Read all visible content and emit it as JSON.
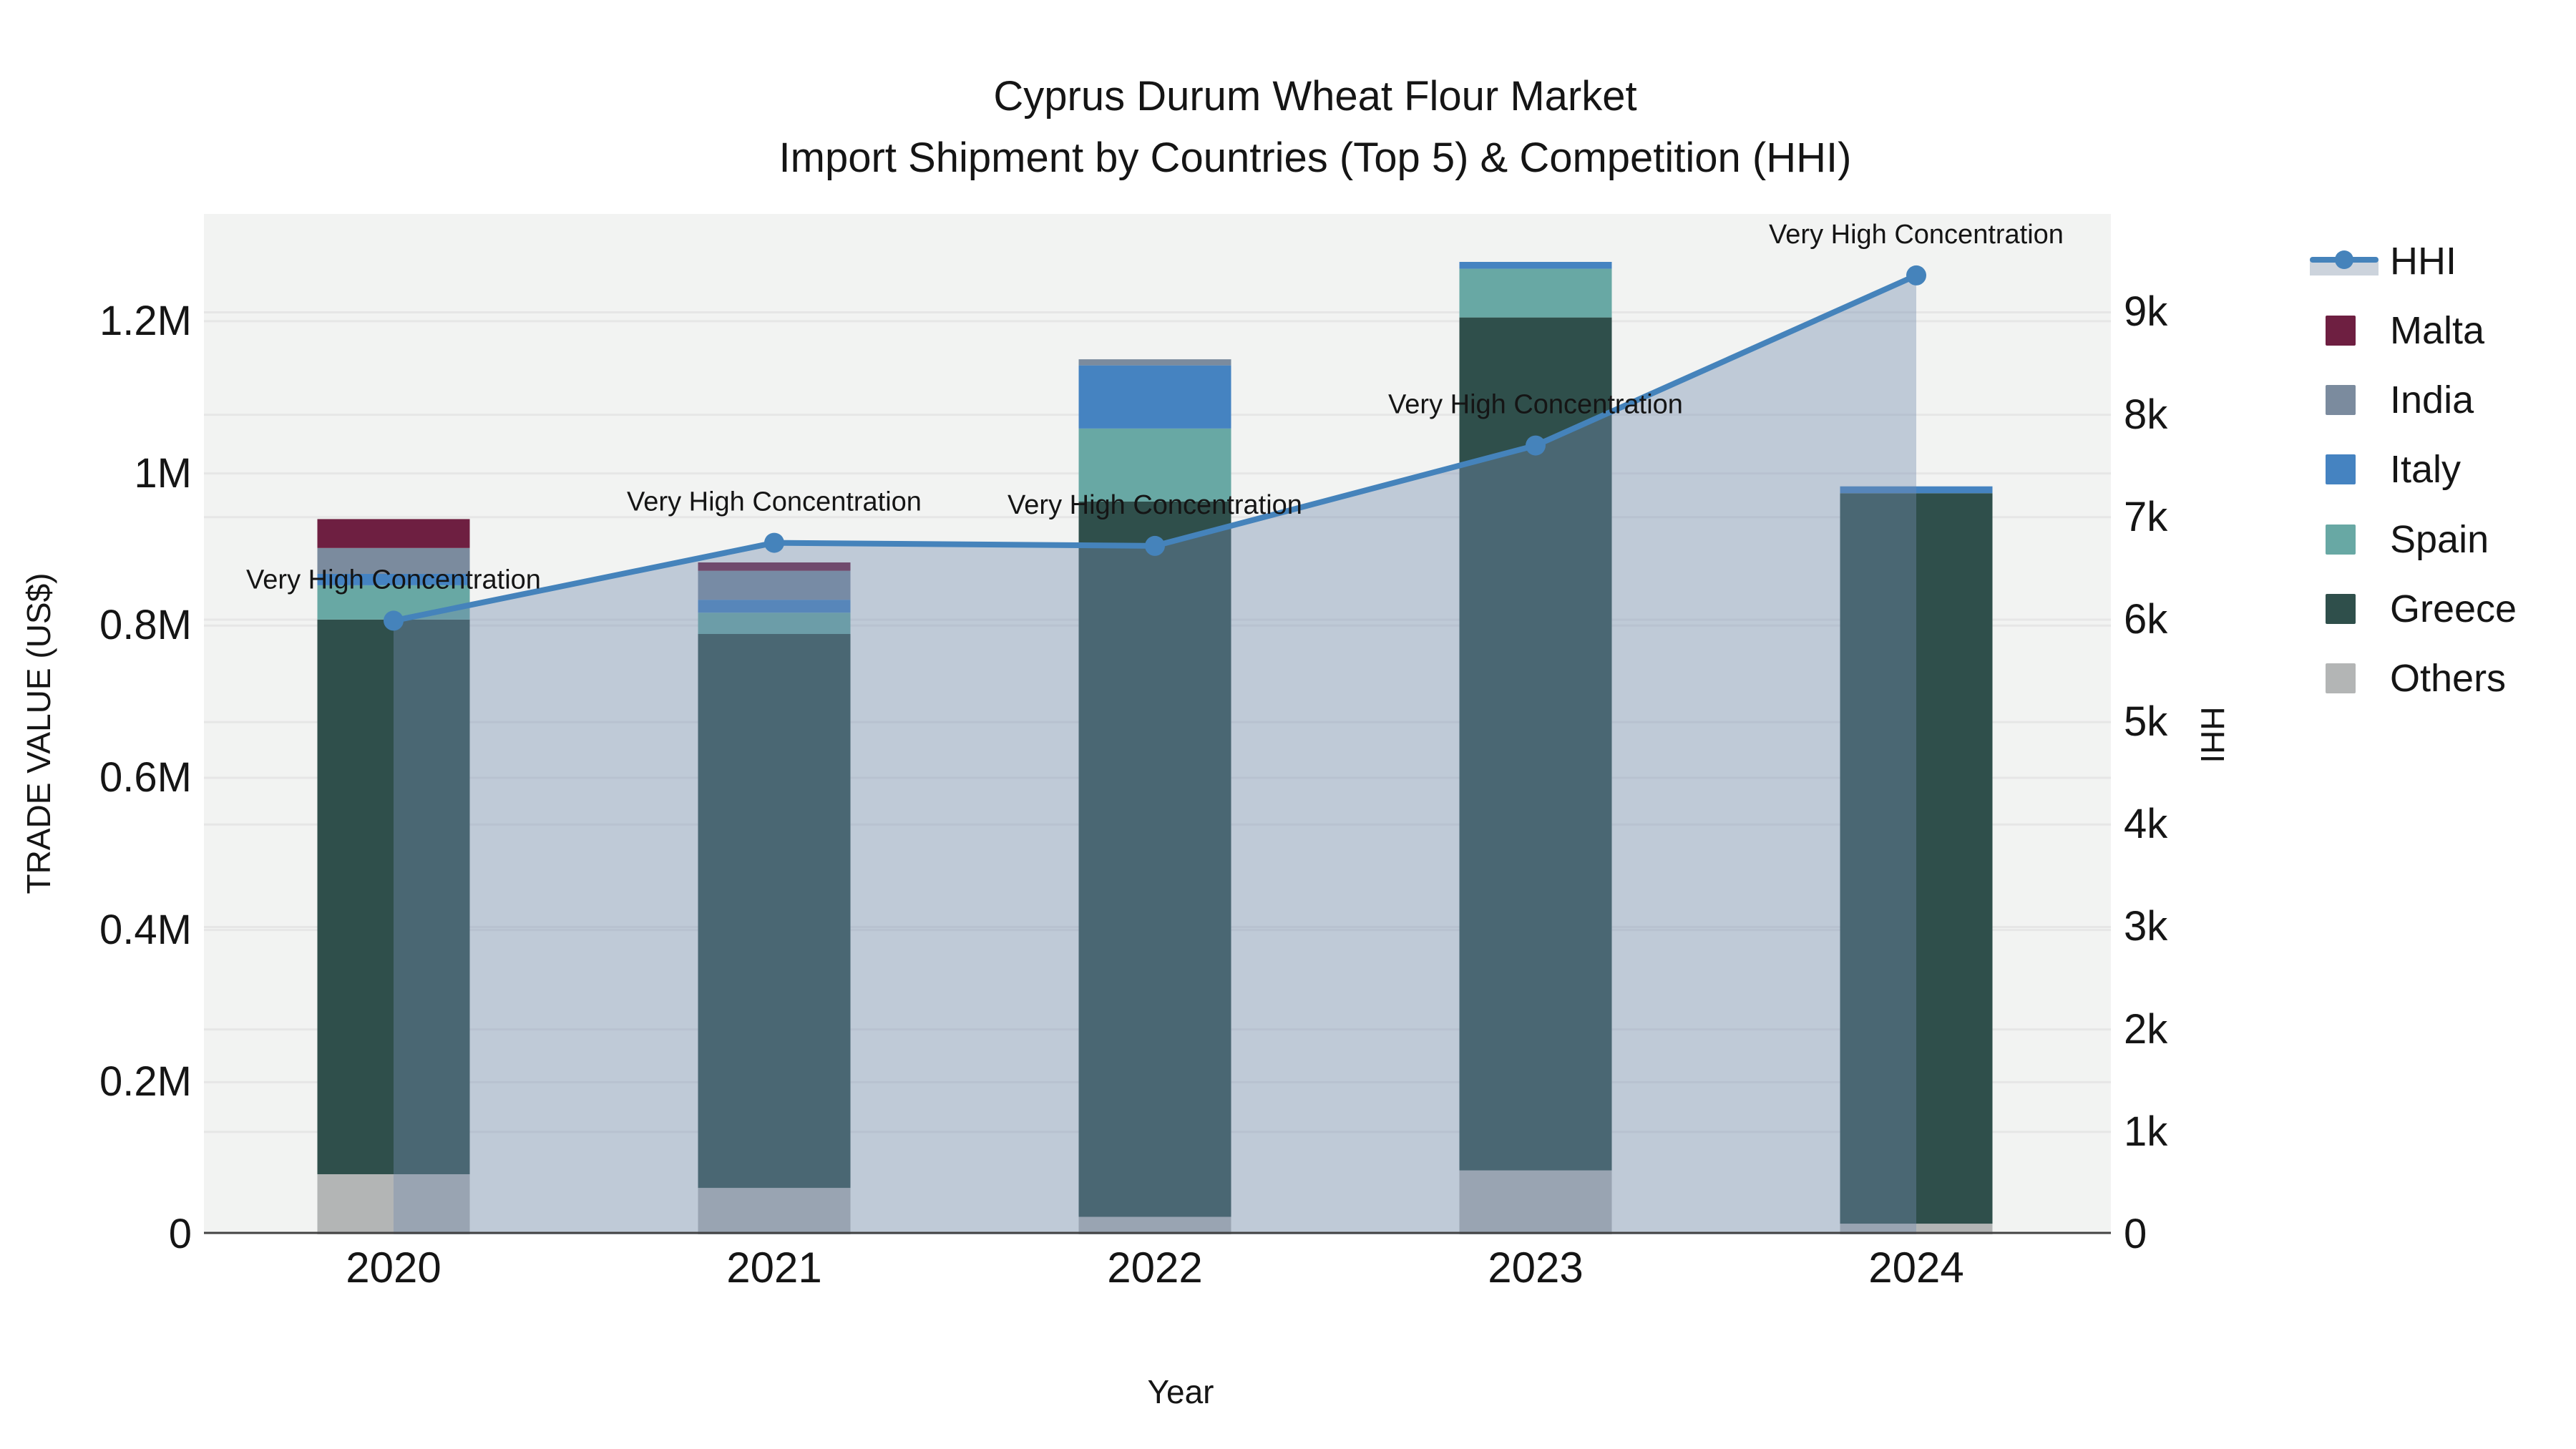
{
  "title": {
    "line1": "Cyprus Durum Wheat Flour Market",
    "line2": "Import Shipment by Countries (Top 5) & Competition (HHI)"
  },
  "axes": {
    "left": {
      "title": "TRADE VALUE (US$)",
      "tick_labels": [
        "0",
        "0.2M",
        "0.4M",
        "0.6M",
        "0.8M",
        "1M",
        "1.2M"
      ],
      "tick_values": [
        0,
        200000,
        400000,
        600000,
        800000,
        1000000,
        1200000
      ],
      "max": 1341000
    },
    "right": {
      "title": "HHI",
      "tick_labels": [
        "0",
        "1k",
        "2k",
        "3k",
        "4k",
        "5k",
        "6k",
        "7k",
        "8k",
        "9k"
      ],
      "tick_values": [
        0,
        1000,
        2000,
        3000,
        4000,
        5000,
        6000,
        7000,
        8000,
        9000
      ],
      "max": 9960
    },
    "x": {
      "title": "Year",
      "tick_labels": [
        "2020",
        "2021",
        "2022",
        "2023",
        "2024"
      ]
    }
  },
  "colors": {
    "plot_bg": "#f2f3f2",
    "grid": "#e6e6e6",
    "axis_line": "#444444",
    "text": "#151515",
    "hhi_line": "#4583bb",
    "hhi_area_fill": "rgba(115,140,175,0.40)"
  },
  "legend": {
    "items": [
      {
        "label": "HHI",
        "type": "line",
        "color": "#4583bb"
      },
      {
        "label": "Malta",
        "type": "bar",
        "color": "#6e1f41"
      },
      {
        "label": "India",
        "type": "bar",
        "color": "#7b8b9e"
      },
      {
        "label": "Italy",
        "type": "bar",
        "color": "#4583c1"
      },
      {
        "label": "Spain",
        "type": "bar",
        "color": "#68a8a4"
      },
      {
        "label": "Greece",
        "type": "bar",
        "color": "#2f4f4b"
      },
      {
        "label": "Others",
        "type": "bar",
        "color": "#b3b5b5"
      }
    ]
  },
  "chart_data": {
    "type": "bar",
    "subtype": "stacked-bars-with-line-overlay",
    "title": "Cyprus Durum Wheat Flour Market — Import Shipment by Countries (Top 5) & Competition (HHI)",
    "xlabel": "Year",
    "ylabel_left": "TRADE VALUE (US$)",
    "ylabel_right": "HHI",
    "ylim_left": [
      0,
      1341000
    ],
    "ylim_right": [
      0,
      9960
    ],
    "grid": true,
    "legend_position": "right",
    "categories": [
      "2020",
      "2021",
      "2022",
      "2023",
      "2024"
    ],
    "series": [
      {
        "name": "Others",
        "type": "bar",
        "color": "#b3b5b5",
        "values": [
          79000,
          61000,
          23000,
          84000,
          14000
        ]
      },
      {
        "name": "Greece",
        "type": "bar",
        "color": "#2f4f4b",
        "values": [
          729000,
          728000,
          940000,
          1121000,
          960000
        ]
      },
      {
        "name": "Spain",
        "type": "bar",
        "color": "#68a8a4",
        "values": [
          45000,
          28000,
          96000,
          64000,
          0
        ]
      },
      {
        "name": "Italy",
        "type": "bar",
        "color": "#4583c1",
        "values": [
          15000,
          17000,
          83000,
          9000,
          9000
        ]
      },
      {
        "name": "India",
        "type": "bar",
        "color": "#7b8b9e",
        "values": [
          34000,
          38000,
          8000,
          0,
          0
        ]
      },
      {
        "name": "Malta",
        "type": "bar",
        "color": "#6e1f41",
        "values": [
          38000,
          11000,
          0,
          0,
          0
        ]
      }
    ],
    "bar_totals": [
      940000,
      883000,
      1150000,
      1278000,
      983000
    ],
    "line_series": {
      "name": "HHI",
      "axis": "right",
      "color": "#4583bb",
      "fill": "rgba(115,140,175,0.40)",
      "marker": "circle",
      "values": [
        5990,
        6750,
        6720,
        7700,
        9360
      ]
    },
    "annotations": [
      {
        "text": "Very High Concentration",
        "x": "2020"
      },
      {
        "text": "Very High Concentration",
        "x": "2021"
      },
      {
        "text": "Very High Concentration",
        "x": "2022"
      },
      {
        "text": "Very High Concentration",
        "x": "2023"
      },
      {
        "text": "Very High Concentration",
        "x": "2024"
      }
    ]
  }
}
